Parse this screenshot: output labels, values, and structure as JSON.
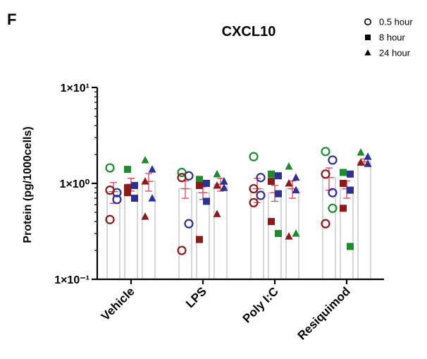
{
  "panel_label": "F",
  "chart_data": {
    "type": "bar",
    "title": "CXCL10",
    "ylabel": "Protein (pg/1000cells)",
    "xlabel": "",
    "yscale": "log",
    "ylim": [
      0.1,
      10
    ],
    "yticks": [
      {
        "value": 10,
        "label": "1×10¹"
      },
      {
        "value": 1,
        "label": "1×10⁰"
      },
      {
        "value": 0.1,
        "label": "1×10⁻¹"
      }
    ],
    "categories": [
      "Vehicle",
      "LPS",
      "Poly I:C",
      "Resiquimod"
    ],
    "legend": {
      "position": "top-right",
      "entries": [
        {
          "name": "0.5 hour",
          "marker": "circle-open"
        },
        {
          "name": "8 hour",
          "marker": "square"
        },
        {
          "name": "24 hour",
          "marker": "triangle"
        }
      ]
    },
    "colors": {
      "donor1": "#8b1a1a",
      "donor2": "#2e3192",
      "donor3": "#1f8a2e",
      "bar_edge": "#c8c8c8",
      "error": "#e0405a"
    },
    "series": [
      {
        "name": "0.5 hour",
        "marker": "circle-open",
        "values": [
          0.82,
          0.88,
          0.88,
          1.15
        ],
        "errors": [
          0.2,
          0.18,
          0.25,
          0.3
        ],
        "points": [
          [
            1.45,
            0.8,
            0.42,
            0.68,
            0.85
          ],
          [
            1.3,
            1.2,
            1.15,
            0.38,
            0.2
          ],
          [
            1.9,
            1.15,
            0.88,
            0.75,
            0.63
          ],
          [
            2.15,
            1.75,
            1.25,
            0.8,
            0.38,
            0.55
          ]
        ]
      },
      {
        "name": "8 hour",
        "marker": "square",
        "values": [
          0.98,
          0.8,
          0.8,
          0.88
        ],
        "errors": [
          0.15,
          0.12,
          0.15,
          0.18
        ],
        "points": [
          [
            1.4,
            0.95,
            0.8,
            0.7,
            0.9
          ],
          [
            1.1,
            1.0,
            0.95,
            0.65,
            0.26
          ],
          [
            1.25,
            1.2,
            1.05,
            0.78,
            0.4,
            0.3
          ],
          [
            1.3,
            1.25,
            1.0,
            0.85,
            0.55,
            0.22
          ]
        ]
      },
      {
        "name": "24 hour",
        "marker": "triangle",
        "values": [
          1.05,
          0.98,
          0.88,
          1.68
        ],
        "errors": [
          0.22,
          0.15,
          0.18,
          0.12
        ],
        "points": [
          [
            1.75,
            1.4,
            1.05,
            0.7,
            0.45
          ],
          [
            1.25,
            1.05,
            0.95,
            0.9,
            0.48
          ],
          [
            1.5,
            1.15,
            1.0,
            0.85,
            0.28,
            0.3
          ],
          [
            2.1,
            1.9,
            1.65,
            1.6
          ]
        ]
      }
    ]
  }
}
